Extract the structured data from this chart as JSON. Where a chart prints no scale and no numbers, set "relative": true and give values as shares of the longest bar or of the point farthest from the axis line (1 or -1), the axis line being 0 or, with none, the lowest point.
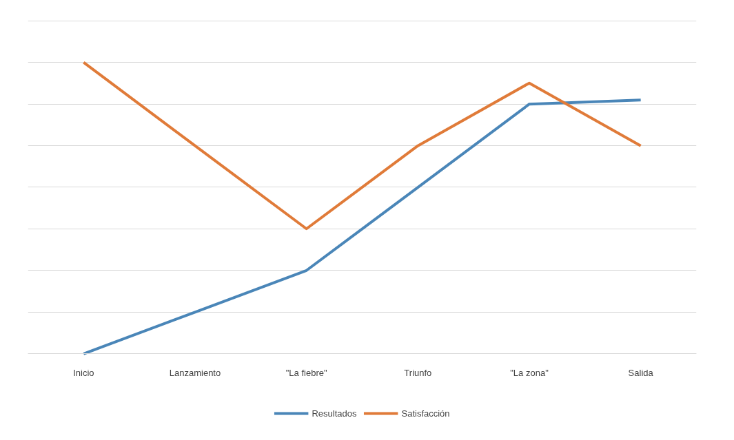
{
  "chart_data": {
    "type": "line",
    "relative": true,
    "categories": [
      "Inicio",
      "Lanzamiento",
      "\"La fiebre\"",
      "Triunfo",
      "\"La zona\"",
      "Salida"
    ],
    "series": [
      {
        "name": "Resultados",
        "color": "#4a86b8",
        "values": [
          0,
          0.143,
          0.286,
          0.571,
          0.857,
          0.871
        ]
      },
      {
        "name": "Satisfacción",
        "color": "#e07b39",
        "values": [
          1,
          0.714,
          0.429,
          0.714,
          0.929,
          0.714
        ]
      }
    ],
    "grid": "y",
    "legend": "bottom",
    "line_style": "solid",
    "marker": "none"
  }
}
